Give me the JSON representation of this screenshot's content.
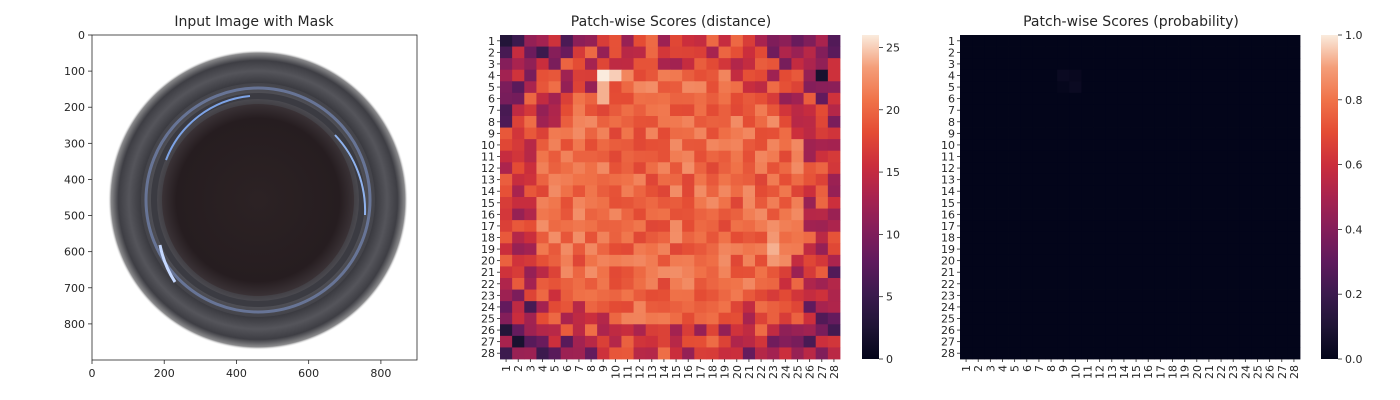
{
  "chart_data": [
    {
      "type": "image",
      "title": "Input Image with Mask",
      "xticks": [
        0,
        200,
        400,
        600,
        800
      ],
      "yticks": [
        0,
        100,
        200,
        300,
        400,
        500,
        600,
        700,
        800
      ],
      "xlim": [
        0,
        900
      ],
      "ylim": [
        900,
        0
      ],
      "content": "top-down photo of a round dark glass jar on white background"
    },
    {
      "type": "heatmap",
      "title": "Patch-wise Scores (distance)",
      "rows": 28,
      "cols": 28,
      "tick_labels": [
        "1",
        "2",
        "3",
        "4",
        "5",
        "6",
        "7",
        "8",
        "9",
        "10",
        "11",
        "12",
        "13",
        "14",
        "15",
        "16",
        "17",
        "18",
        "19",
        "20",
        "21",
        "22",
        "23",
        "24",
        "25",
        "26",
        "27",
        "28"
      ],
      "colorbar": {
        "min": 0,
        "max": 26,
        "ticks": [
          0,
          5,
          10,
          15,
          20,
          25
        ],
        "colormap": "rocket"
      },
      "pattern": "edge patches low (~5-15), interior patches high (~18-25)",
      "max_value": 26,
      "min_value": 1
    },
    {
      "type": "heatmap",
      "title": "Patch-wise Scores (probability)",
      "rows": 28,
      "cols": 28,
      "tick_labels": [
        "1",
        "2",
        "3",
        "4",
        "5",
        "6",
        "7",
        "8",
        "9",
        "10",
        "11",
        "12",
        "13",
        "14",
        "15",
        "16",
        "17",
        "18",
        "19",
        "20",
        "21",
        "22",
        "23",
        "24",
        "25",
        "26",
        "27",
        "28"
      ],
      "colorbar": {
        "min": 0.0,
        "max": 1.0,
        "ticks": [
          "0.0",
          "0.2",
          "0.4",
          "0.6",
          "0.8",
          "1.0"
        ],
        "colormap": "rocket"
      },
      "values_note": "all near 0.0; slight elevation around row 4-5, col 9-10 (~0.03)",
      "hotspots": [
        {
          "row": 4,
          "col": 9,
          "value": 0.03
        },
        {
          "row": 4,
          "col": 10,
          "value": 0.02
        },
        {
          "row": 5,
          "col": 10,
          "value": 0.03
        },
        {
          "row": 5,
          "col": 9,
          "value": 0.01
        }
      ]
    }
  ]
}
